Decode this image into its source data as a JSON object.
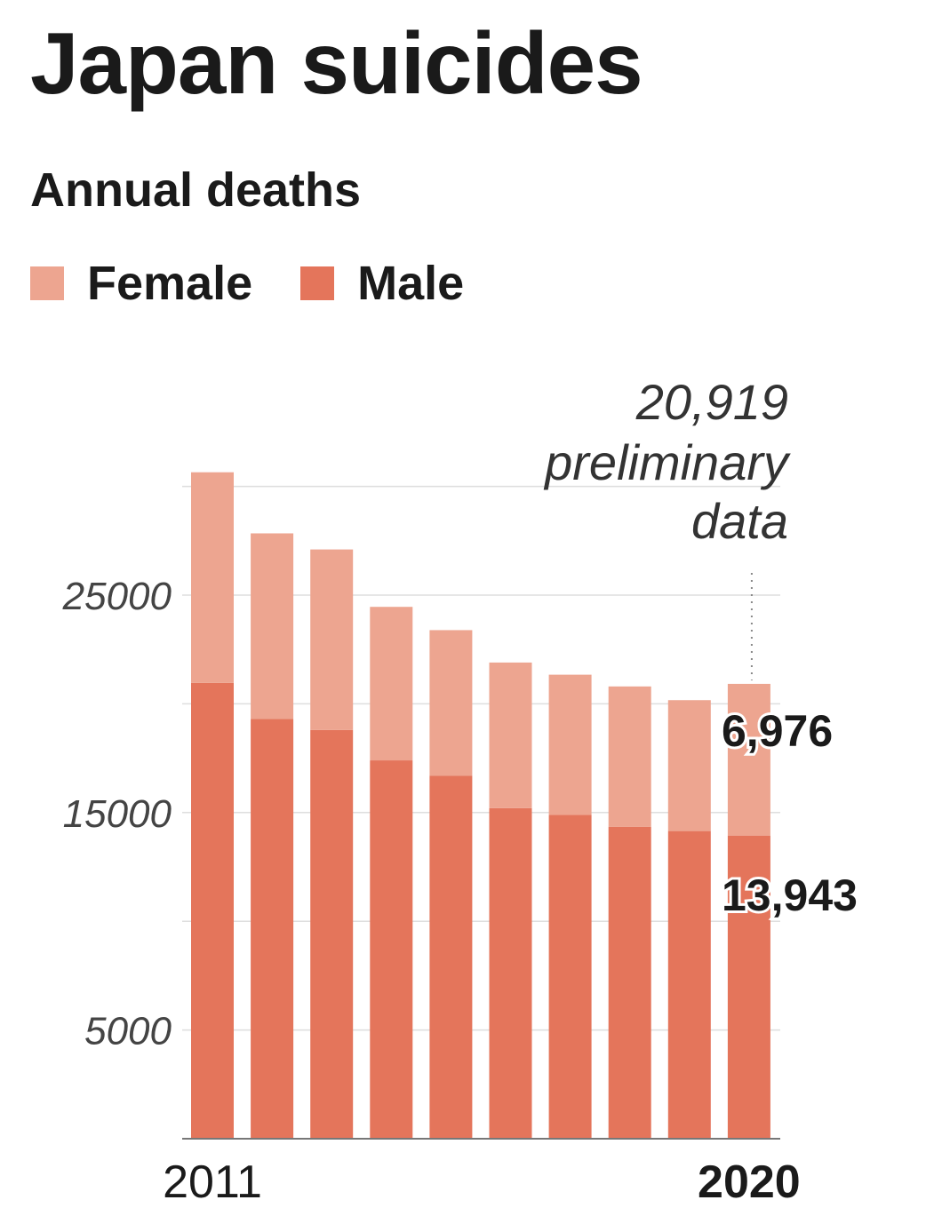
{
  "header": {
    "title": "Japan suicides",
    "subtitle": "Annual deaths"
  },
  "legend": [
    {
      "label": "Female",
      "color": "#eda590"
    },
    {
      "label": "Male",
      "color": "#e4755b"
    }
  ],
  "chart_data": {
    "type": "bar",
    "stacked": true,
    "title": "Japan suicides",
    "subtitle": "Annual deaths",
    "categories": [
      "2011",
      "2012",
      "2013",
      "2014",
      "2015",
      "2016",
      "2017",
      "2018",
      "2019",
      "2020"
    ],
    "x_tick_labels": [
      {
        "text": "2011",
        "bold": false,
        "category_index": 0
      },
      {
        "text": "2020",
        "bold": true,
        "category_index": 9
      }
    ],
    "series": [
      {
        "name": "Male",
        "color": "#e4755b",
        "values": [
          20960,
          19300,
          18800,
          17400,
          16700,
          15200,
          14900,
          14350,
          14150,
          13943
        ]
      },
      {
        "name": "Female",
        "color": "#eda590",
        "values": [
          9690,
          8540,
          8300,
          7060,
          6690,
          6700,
          6440,
          6450,
          6020,
          6976
        ]
      }
    ],
    "y_ticks": [
      {
        "value": 25000,
        "label": "25000"
      },
      {
        "value": 15000,
        "label": "15000"
      },
      {
        "value": 5000,
        "label": "5000"
      }
    ],
    "gridlines": [
      5000,
      10000,
      15000,
      20000,
      25000,
      30000
    ],
    "ylim": [
      0,
      35000
    ],
    "annotations": {
      "total_lines": [
        "20,919",
        "preliminary",
        "data"
      ],
      "female_last": "6,976",
      "male_last": "13,943"
    }
  }
}
